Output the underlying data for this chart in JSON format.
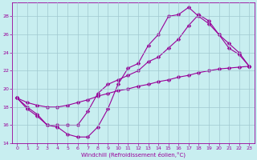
{
  "xlabel": "Windchill (Refroidissement éolien,°C)",
  "bg_color": "#c8eef0",
  "line_color": "#990099",
  "grid_color": "#a0c8d0",
  "xlim": [
    -0.5,
    23.5
  ],
  "ylim": [
    14,
    29.5
  ],
  "yticks": [
    14,
    16,
    18,
    20,
    22,
    24,
    26,
    28
  ],
  "xticks": [
    0,
    1,
    2,
    3,
    4,
    5,
    6,
    7,
    8,
    9,
    10,
    11,
    12,
    13,
    14,
    15,
    16,
    17,
    18,
    19,
    20,
    21,
    22,
    23
  ],
  "line1_x": [
    0,
    1,
    2,
    3,
    4,
    5,
    6,
    7,
    8,
    9,
    10,
    11,
    12,
    13,
    14,
    15,
    16,
    17,
    18,
    19,
    20,
    21,
    22,
    23
  ],
  "line1_y": [
    19.0,
    17.8,
    17.0,
    16.0,
    15.8,
    15.0,
    14.7,
    14.7,
    15.8,
    17.8,
    20.5,
    22.3,
    22.8,
    24.8,
    26.0,
    28.0,
    28.2,
    29.0,
    28.0,
    27.2,
    26.0,
    25.0,
    24.0,
    22.5
  ],
  "line2_x": [
    0,
    1,
    2,
    3,
    4,
    5,
    6,
    7,
    8,
    9,
    10,
    11,
    12,
    13,
    14,
    15,
    16,
    17,
    18,
    19,
    20,
    21,
    22,
    23
  ],
  "line2_y": [
    19.0,
    18.0,
    17.2,
    16.0,
    16.0,
    16.0,
    16.0,
    17.5,
    19.5,
    20.5,
    21.0,
    21.5,
    22.0,
    23.0,
    23.5,
    24.5,
    25.5,
    27.0,
    28.2,
    27.5,
    26.0,
    24.5,
    23.8,
    22.5
  ],
  "line3_x": [
    0,
    1,
    2,
    3,
    4,
    5,
    6,
    7,
    8,
    9,
    10,
    11,
    12,
    13,
    14,
    15,
    16,
    17,
    18,
    19,
    20,
    21,
    22,
    23
  ],
  "line3_y": [
    19.0,
    18.5,
    18.2,
    18.0,
    18.0,
    18.2,
    18.5,
    18.8,
    19.2,
    19.5,
    19.8,
    20.0,
    20.3,
    20.5,
    20.8,
    21.0,
    21.3,
    21.5,
    21.8,
    22.0,
    22.2,
    22.3,
    22.4,
    22.5
  ]
}
